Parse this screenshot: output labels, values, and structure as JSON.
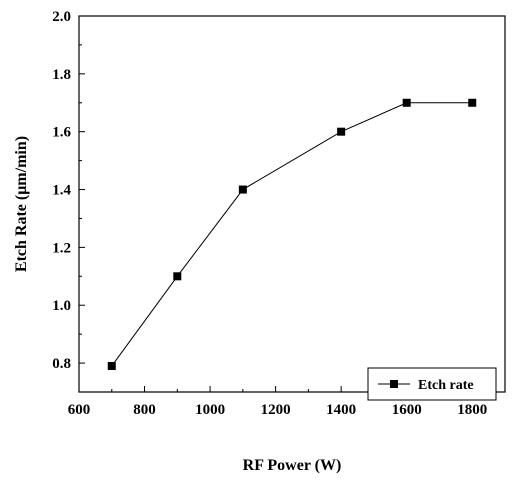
{
  "chart_data": {
    "type": "line",
    "title": "",
    "xlabel": "RF Power (W)",
    "ylabel": "Etch Rate (μm/min)",
    "xlim": [
      600,
      1900
    ],
    "ylim": [
      0.7,
      2.0
    ],
    "x_ticks": [
      600,
      800,
      1000,
      1200,
      1400,
      1600,
      1800
    ],
    "y_ticks": [
      0.8,
      1.0,
      1.2,
      1.4,
      1.6,
      1.8,
      2.0
    ],
    "x_tick_labels": [
      "600",
      "800",
      "1000",
      "1200",
      "1400",
      "1600",
      "1800"
    ],
    "y_tick_labels": [
      "0.8",
      "1.0",
      "1.2",
      "1.4",
      "1.6",
      "1.8",
      "2.0"
    ],
    "grid": false,
    "legend_position": "bottom-right",
    "series": [
      {
        "name": "Etch rate",
        "marker": "square",
        "color": "#000000",
        "x": [
          700,
          900,
          1100,
          1400,
          1600,
          1800
        ],
        "y": [
          0.79,
          1.1,
          1.4,
          1.6,
          1.7,
          1.7
        ]
      }
    ]
  }
}
